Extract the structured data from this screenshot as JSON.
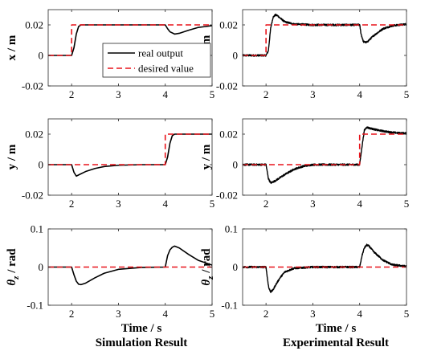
{
  "legend": {
    "real_label": "real output",
    "desired_label": "desired value"
  },
  "colors": {
    "real": "#000000",
    "desired": "#e8141b",
    "axis": "#262626",
    "text": "#000000"
  },
  "columns": [
    {
      "xlabel": "Time / s",
      "title": "Simulation Result"
    },
    {
      "xlabel": "Time / s",
      "title": "Experimental Result"
    }
  ],
  "chart_data": [
    {
      "type": "line",
      "panel": "x-simulation",
      "ylabel": "x / m",
      "xlim": [
        1.5,
        5
      ],
      "ylim": [
        -0.02,
        0.03
      ],
      "xticks": [
        "2",
        "3",
        "4",
        "5"
      ],
      "yticks": [
        "-0.02",
        "0",
        "0.02"
      ],
      "legend_position": "inside-right",
      "series": [
        {
          "name": "real output",
          "style": "solid",
          "x": [
            1.5,
            2.0,
            2.05,
            2.1,
            2.15,
            2.2,
            2.3,
            2.5,
            3.0,
            4.0,
            4.05,
            4.1,
            4.2,
            4.3,
            4.5,
            4.7,
            5.0
          ],
          "y": [
            0,
            0,
            0.005,
            0.014,
            0.019,
            0.02,
            0.02,
            0.02,
            0.02,
            0.02,
            0.0175,
            0.0155,
            0.014,
            0.0145,
            0.0165,
            0.0183,
            0.0195
          ]
        },
        {
          "name": "desired value",
          "style": "dashed",
          "x": [
            1.5,
            2.0,
            2.0,
            5.0
          ],
          "y": [
            0,
            0,
            0.02,
            0.02
          ]
        }
      ]
    },
    {
      "type": "line",
      "panel": "x-experimental",
      "ylabel": "x / m",
      "xlim": [
        1.5,
        5
      ],
      "ylim": [
        -0.02,
        0.03
      ],
      "xticks": [
        "2",
        "3",
        "4",
        "5"
      ],
      "yticks": [
        "-0.02",
        "0",
        "0.02"
      ],
      "series": [
        {
          "name": "real output",
          "style": "solid",
          "noisy": true,
          "x": [
            1.5,
            2.0,
            2.05,
            2.1,
            2.15,
            2.2,
            2.25,
            2.3,
            2.4,
            2.6,
            3.0,
            4.0,
            4.03,
            4.08,
            4.15,
            4.3,
            4.5,
            4.7,
            5.0
          ],
          "y": [
            0,
            0,
            0.003,
            0.018,
            0.025,
            0.0265,
            0.026,
            0.0245,
            0.022,
            0.0205,
            0.02,
            0.02,
            0.014,
            0.009,
            0.0085,
            0.013,
            0.0175,
            0.0195,
            0.0205
          ]
        },
        {
          "name": "desired value",
          "style": "dashed",
          "x": [
            1.5,
            2.0,
            2.0,
            5.0
          ],
          "y": [
            0,
            0,
            0.02,
            0.02
          ]
        }
      ]
    },
    {
      "type": "line",
      "panel": "y-simulation",
      "ylabel": "y / m",
      "xlim": [
        1.5,
        5
      ],
      "ylim": [
        -0.02,
        0.03
      ],
      "xticks": [
        "2",
        "3",
        "4",
        "5"
      ],
      "yticks": [
        "-0.02",
        "0",
        "0.02"
      ],
      "series": [
        {
          "name": "real output",
          "style": "solid",
          "x": [
            1.5,
            2.0,
            2.05,
            2.1,
            2.2,
            2.3,
            2.5,
            2.7,
            3.0,
            3.5,
            4.0,
            4.05,
            4.1,
            4.15,
            4.2,
            4.3,
            5.0
          ],
          "y": [
            0,
            0,
            -0.005,
            -0.0075,
            -0.006,
            -0.0045,
            -0.0025,
            -0.0012,
            -0.0004,
            0,
            0,
            0.005,
            0.014,
            0.019,
            0.02,
            0.02,
            0.02
          ]
        },
        {
          "name": "desired value",
          "style": "dashed",
          "x": [
            1.5,
            4.0,
            4.0,
            5.0
          ],
          "y": [
            0,
            0,
            0.02,
            0.02
          ]
        }
      ]
    },
    {
      "type": "line",
      "panel": "y-experimental",
      "ylabel": "y / m",
      "xlim": [
        1.5,
        5
      ],
      "ylim": [
        -0.02,
        0.03
      ],
      "xticks": [
        "2",
        "3",
        "4",
        "5"
      ],
      "yticks": [
        "-0.02",
        "0",
        "0.02"
      ],
      "series": [
        {
          "name": "real output",
          "style": "solid",
          "noisy": true,
          "x": [
            1.5,
            2.0,
            2.05,
            2.1,
            2.2,
            2.4,
            2.6,
            2.8,
            3.0,
            4.0,
            4.05,
            4.1,
            4.15,
            4.2,
            4.4,
            4.6,
            4.8,
            5.0
          ],
          "y": [
            0,
            0,
            -0.009,
            -0.012,
            -0.0105,
            -0.0065,
            -0.003,
            -0.001,
            0,
            0,
            0.012,
            0.0225,
            0.0245,
            0.024,
            0.0225,
            0.0215,
            0.0208,
            0.0205
          ]
        },
        {
          "name": "desired value",
          "style": "dashed",
          "x": [
            1.5,
            4.0,
            4.0,
            5.0
          ],
          "y": [
            0,
            0,
            0.02,
            0.02
          ]
        }
      ]
    },
    {
      "type": "line",
      "panel": "theta-simulation",
      "ylabel": "θz / rad",
      "xlim": [
        1.5,
        5
      ],
      "ylim": [
        -0.1,
        0.1
      ],
      "xticks": [
        "2",
        "3",
        "4",
        "5"
      ],
      "yticks": [
        "-0.1",
        "0",
        "0.1"
      ],
      "series": [
        {
          "name": "real output",
          "style": "solid",
          "x": [
            1.5,
            2.0,
            2.05,
            2.1,
            2.15,
            2.2,
            2.3,
            2.5,
            2.7,
            3.0,
            3.5,
            4.0,
            4.05,
            4.1,
            4.15,
            4.2,
            4.3,
            4.5,
            4.7,
            5.0
          ],
          "y": [
            0,
            0,
            -0.02,
            -0.037,
            -0.045,
            -0.046,
            -0.042,
            -0.028,
            -0.016,
            -0.006,
            -0.001,
            0,
            0.03,
            0.045,
            0.052,
            0.055,
            0.05,
            0.033,
            0.018,
            0.005
          ]
        },
        {
          "name": "desired value",
          "style": "dashed",
          "x": [
            1.5,
            5.0
          ],
          "y": [
            0,
            0
          ]
        }
      ]
    },
    {
      "type": "line",
      "panel": "theta-experimental",
      "ylabel": "θz / rad",
      "xlim": [
        1.5,
        5
      ],
      "ylim": [
        -0.1,
        0.1
      ],
      "xticks": [
        "2",
        "3",
        "4",
        "5"
      ],
      "yticks": [
        "-0.1",
        "0",
        "0.1"
      ],
      "series": [
        {
          "name": "real output",
          "style": "solid",
          "noisy": true,
          "x": [
            1.5,
            2.0,
            2.03,
            2.06,
            2.1,
            2.15,
            2.2,
            2.3,
            2.4,
            2.6,
            3.0,
            4.0,
            4.05,
            4.1,
            4.15,
            4.2,
            4.3,
            4.5,
            4.7,
            5.0
          ],
          "y": [
            0,
            0,
            -0.03,
            -0.055,
            -0.065,
            -0.06,
            -0.048,
            -0.028,
            -0.013,
            -0.003,
            0,
            0,
            0.03,
            0.05,
            0.058,
            0.055,
            0.04,
            0.018,
            0.006,
            0.002
          ]
        },
        {
          "name": "desired value",
          "style": "dashed",
          "x": [
            1.5,
            5.0
          ],
          "y": [
            0,
            0
          ]
        }
      ]
    }
  ]
}
